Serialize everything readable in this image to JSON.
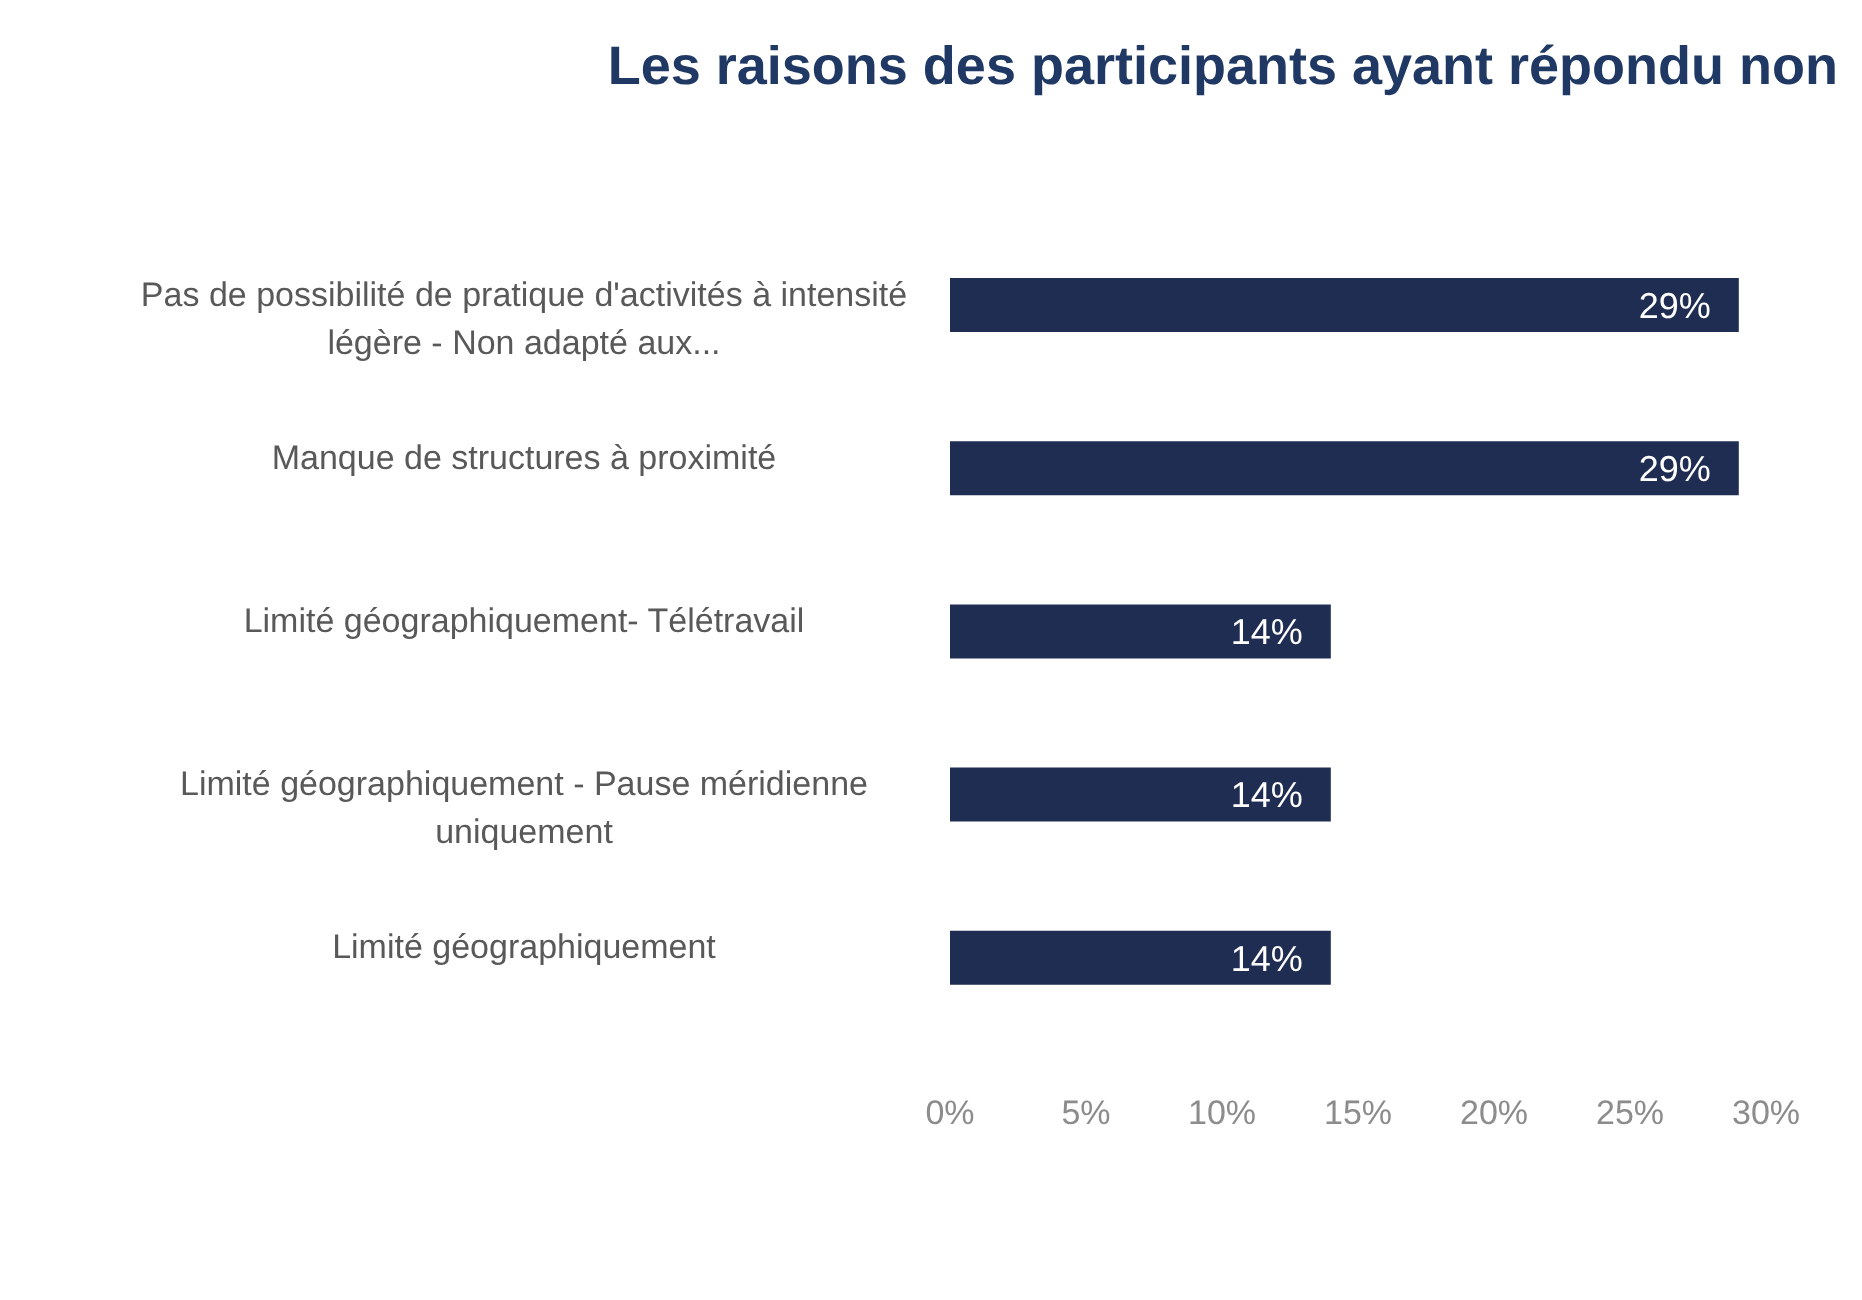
{
  "chart_data": {
    "type": "bar",
    "orientation": "horizontal",
    "title": "Les raisons des participants ayant répondu non",
    "categories": [
      "Pas de possibilité de pratique d'activités à intensité légère - Non adapté aux...",
      "Manque de structures à proximité",
      "Limité géographiquement- Télétravail",
      "Limité géographiquement - Pause méridienne uniquement",
      "Limité géographiquement"
    ],
    "values": [
      29,
      29,
      14,
      14,
      14
    ],
    "value_labels": [
      "29%",
      "29%",
      "14%",
      "14%",
      "14%"
    ],
    "color": "#1f2d52",
    "xlim": [
      0,
      30
    ],
    "xticks": [
      {
        "value": 0,
        "label": "0%"
      },
      {
        "value": 5,
        "label": "5%"
      },
      {
        "value": 10,
        "label": "10%"
      },
      {
        "value": 15,
        "label": "15%"
      },
      {
        "value": 20,
        "label": "20%"
      },
      {
        "value": 25,
        "label": "25%"
      },
      {
        "value": 30,
        "label": "30%"
      }
    ],
    "grid": false,
    "legend": false
  }
}
